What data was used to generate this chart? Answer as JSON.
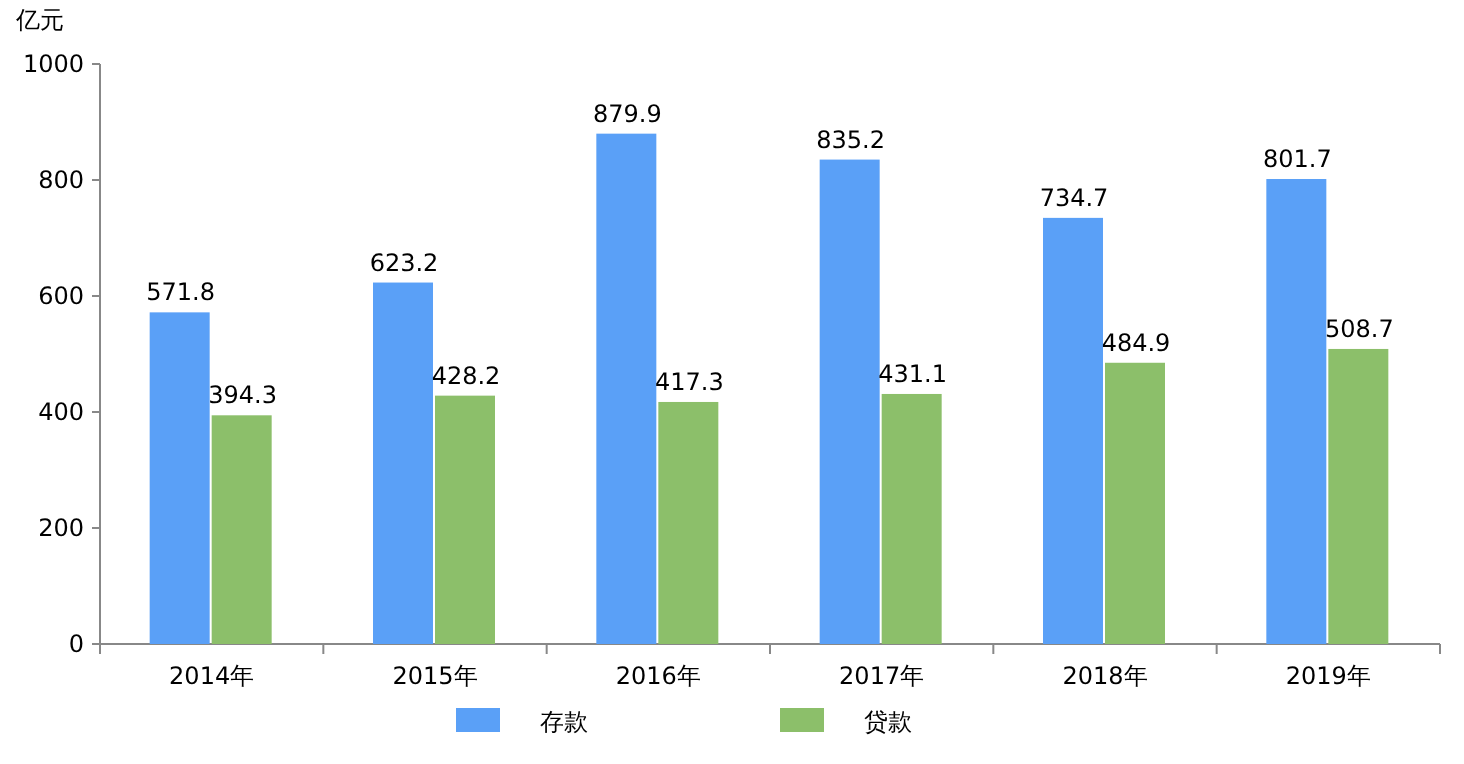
{
  "chart_data": {
    "type": "bar",
    "ylabel": "亿元",
    "categories": [
      "2014年",
      "2015年",
      "2016年",
      "2017年",
      "2018年",
      "2019年"
    ],
    "series": [
      {
        "name": "存款",
        "color": "#5aa0f7",
        "values": [
          571.8,
          623.2,
          879.9,
          835.2,
          734.7,
          801.7
        ]
      },
      {
        "name": "贷款",
        "color": "#8cbf6a",
        "values": [
          394.3,
          428.2,
          417.3,
          431.1,
          484.9,
          508.7
        ]
      }
    ],
    "ylim": [
      0,
      1000
    ],
    "yticks": [
      0,
      200,
      400,
      600,
      800,
      1000
    ],
    "data_labels": true,
    "legend": "bottom"
  }
}
